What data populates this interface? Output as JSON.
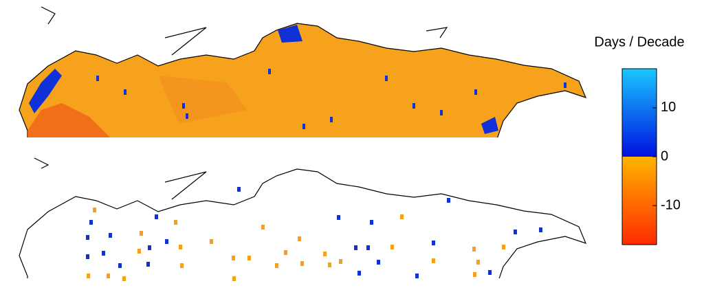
{
  "colorbar": {
    "label": "Days / Decade",
    "lim": [
      -18,
      18
    ],
    "ticks": [
      10,
      0,
      -10
    ],
    "colors": {
      "high": "#19c8ff",
      "zero_high": "#0010e0",
      "zero_low": "#ffb400",
      "low": "#ff2a00"
    }
  }
}
